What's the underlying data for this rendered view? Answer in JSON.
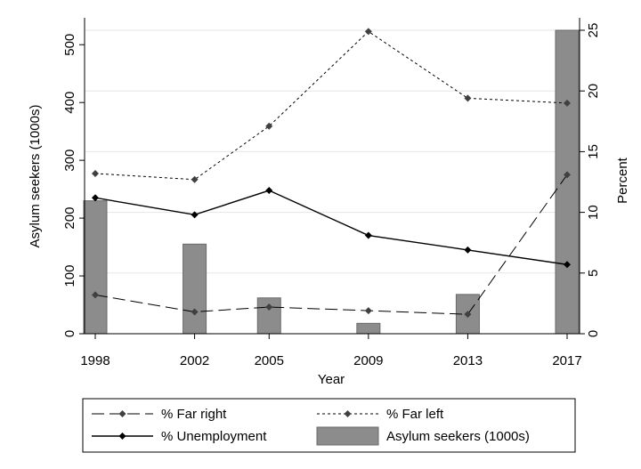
{
  "chart_data": {
    "type": "line",
    "x": [
      1998,
      2002,
      2005,
      2009,
      2013,
      2017
    ],
    "xlabel": "Year",
    "ylabel_left": "Asylum seekers (1000s)",
    "ylabel_right": "Percent",
    "ylim_left": [
      0,
      525
    ],
    "ylim_right": [
      0,
      25
    ],
    "yticks_left": [
      0,
      100,
      200,
      300,
      400,
      500
    ],
    "yticks_right": [
      0,
      5,
      10,
      15,
      20,
      25
    ],
    "grid": true,
    "legend_position": "bottom",
    "bars": {
      "name": "Asylum seekers (1000s)",
      "axis": "left",
      "values": [
        230,
        155,
        62,
        18,
        68,
        525
      ]
    },
    "series": [
      {
        "name": "% Far right",
        "axis": "right",
        "style": "long-dash",
        "values": [
          3.2,
          1.8,
          2.2,
          1.9,
          1.6,
          13.1
        ]
      },
      {
        "name": "% Far left",
        "axis": "right",
        "style": "short-dash",
        "values": [
          13.2,
          12.7,
          17.1,
          24.9,
          19.4,
          19.0
        ]
      },
      {
        "name": "% Unemployment",
        "axis": "right",
        "style": "solid",
        "values": [
          11.2,
          9.8,
          11.8,
          8.1,
          6.9,
          5.7
        ]
      }
    ]
  },
  "colors": {
    "bar_fill": "#8c8c8c",
    "bar_stroke": "#6a6a6a",
    "line": "#000000",
    "marker": "#404040",
    "grid": "#e6e6e6"
  }
}
